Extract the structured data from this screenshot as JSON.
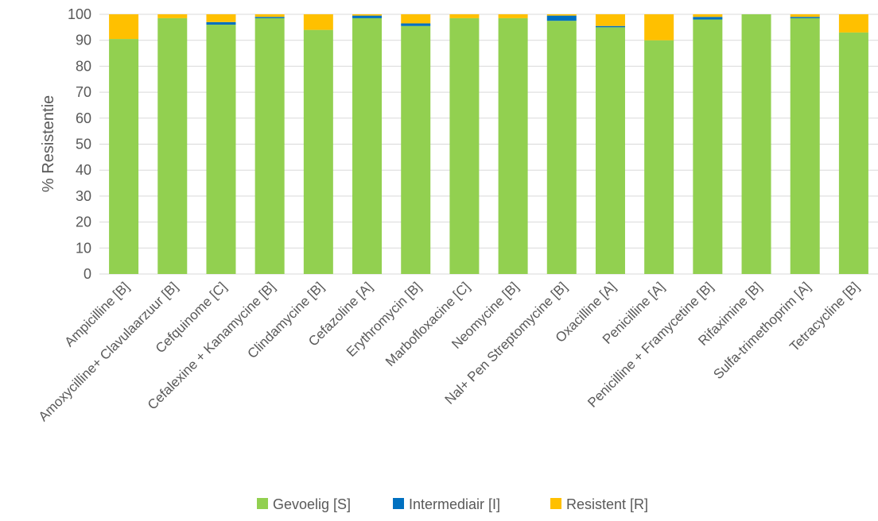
{
  "chart_data": {
    "type": "bar",
    "stacked": true,
    "title": "",
    "xlabel": "",
    "ylabel": "% Resistentie",
    "ylim": [
      0,
      100
    ],
    "yticks": [
      0,
      10,
      20,
      30,
      40,
      50,
      60,
      70,
      80,
      90,
      100
    ],
    "grid": true,
    "legend_position": "bottom",
    "categories": [
      "Ampicilline [B]",
      "Amoxycilline+ Clavulaarzuur [B]",
      "Cefquinome [C]",
      "Cefalexine + Kanamycine [B]",
      "Clindamycine [B]",
      "Cefazoline [A]",
      "Erythromycin [B]",
      "Marbofloxacine [C]",
      "Neomycine [B]",
      "Nal+ Pen Streptomycine [B]",
      "Oxacilline [A]",
      "Penicilline [A]",
      "Penicilline + Framycetine [B]",
      "Rifaximine [B]",
      "Sulfa-trimethoprim [A]",
      "Tetracycline [B]"
    ],
    "series": [
      {
        "name": "Gevoelig [S]",
        "color": "#92D050",
        "values": [
          90.5,
          98.5,
          96,
          98.5,
          94,
          98.5,
          95.5,
          98.5,
          98.5,
          97.5,
          95,
          90,
          98,
          100,
          98.5,
          93
        ]
      },
      {
        "name": "Intermediair [I]",
        "color": "#0070C0",
        "values": [
          0,
          0,
          1,
          0.5,
          0,
          1,
          1,
          0,
          0,
          2,
          0.5,
          0,
          1,
          0,
          0.5,
          0
        ]
      },
      {
        "name": "Resistent [R]",
        "color": "#FFC000",
        "values": [
          9.5,
          1.5,
          3,
          1,
          6,
          0.5,
          3.5,
          1.5,
          1.5,
          0.5,
          4.5,
          10,
          1,
          0,
          1,
          7
        ]
      }
    ]
  }
}
